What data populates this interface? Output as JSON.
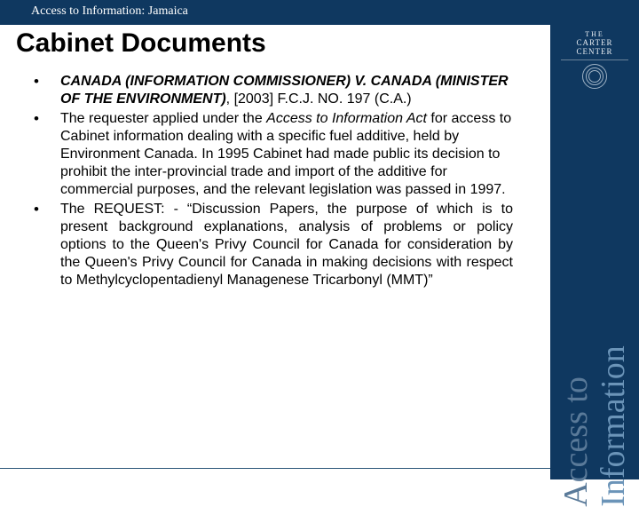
{
  "colors": {
    "band": "#0f3860",
    "vertical_text_1": "#5a7a99",
    "vertical_text_2": "#6b94b8",
    "body_text": "#000000",
    "header_text": "#ffffff"
  },
  "typography": {
    "header_family": "Georgia",
    "body_family": "Arial",
    "title_size_pt": 22,
    "body_size_pt": 12,
    "vertical_size_pt": 28
  },
  "header": {
    "breadcrumb": "Access to Information: Jamaica"
  },
  "title": "Cabinet Documents",
  "bullets": [
    {
      "case_name": "CANADA (INFORMATION COMMISSIONER) V. CANADA (MINISTER OF THE ENVIRONMENT)",
      "citation_after": ", [2003] F.C.J. NO. 197 (C.A.)"
    },
    {
      "pre": "The requester applied under the ",
      "act": "Access to Information Act",
      "post": " for access to Cabinet information dealing with a specific fuel additive, held by Environment Canada. In 1995 Cabinet had made public its decision to prohibit the inter-provincial trade and import of the additive for commercial purposes, and the relevant legislation was passed in 1997."
    },
    {
      "text": "The REQUEST: - “Discussion Papers, the purpose of which is to present background explanations, analysis of problems or policy options to the Queen's Privy Council for Canada for consideration by the Queen's Privy Council for Canada in making decisions with respect to Methylcyclopentadienyl Managenese Tricarbonyl (MMT)”"
    }
  ],
  "brand": {
    "line1": "THE",
    "line2": "CARTER CENTER"
  },
  "vertical": {
    "line1": "Access to",
    "line2": "Information"
  }
}
